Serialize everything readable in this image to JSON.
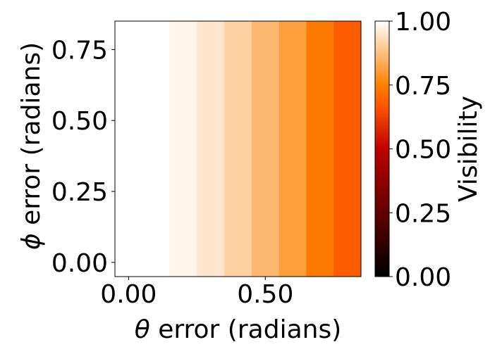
{
  "chart_data": {
    "type": "heatmap",
    "xlabel_symbol": "θ",
    "xlabel_text": " error (radians)",
    "ylabel_symbol": "ϕ",
    "ylabel_text": " error (radians)",
    "xlim": [
      -0.05,
      0.85
    ],
    "ylim": [
      -0.05,
      0.85
    ],
    "x_ticks": [
      0.0,
      0.5
    ],
    "x_tick_labels": [
      "0.00",
      "0.50"
    ],
    "y_ticks": [
      0.0,
      0.25,
      0.5,
      0.75
    ],
    "y_tick_labels": [
      "0.00",
      "0.25",
      "0.50",
      "0.75"
    ],
    "x_bins": [
      -0.05,
      0.15,
      0.25,
      0.35,
      0.45,
      0.55,
      0.65,
      0.75,
      0.85
    ],
    "visibility_by_theta_bin": [
      1.0,
      0.98,
      0.95,
      0.91,
      0.86,
      0.81,
      0.74,
      0.68
    ],
    "colormap": "gist_heat",
    "colorbar": {
      "label": "Visibility",
      "range": [
        0.0,
        1.0
      ],
      "ticks": [
        0.0,
        0.25,
        0.5,
        0.75,
        1.0
      ],
      "tick_labels": [
        "0.00",
        "0.25",
        "0.50",
        "0.75",
        "1.00"
      ]
    },
    "grid": false,
    "legend": false
  }
}
